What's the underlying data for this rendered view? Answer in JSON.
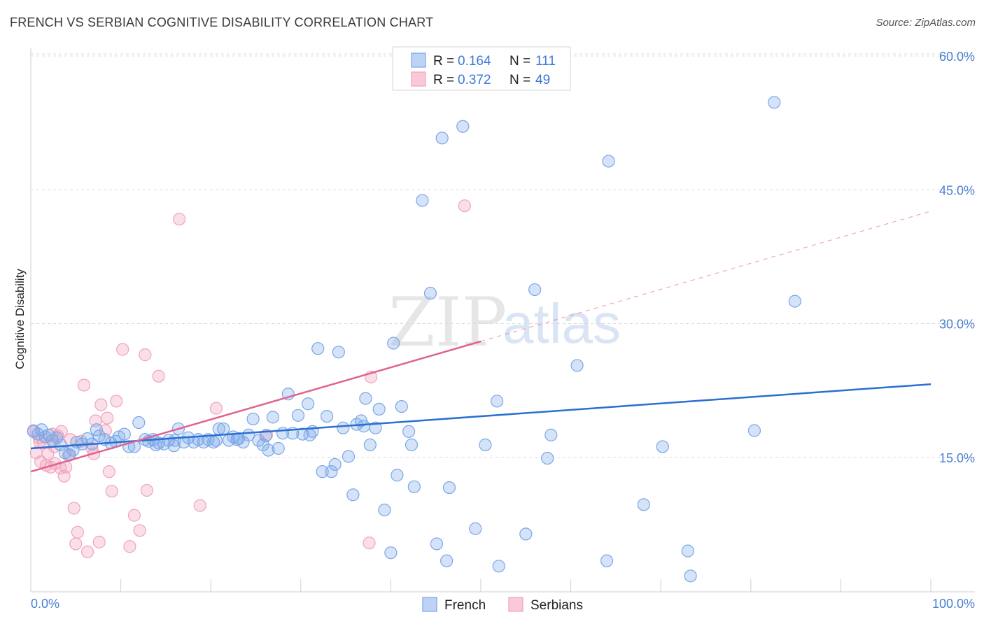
{
  "title": "FRENCH VS SERBIAN COGNITIVE DISABILITY CORRELATION CHART",
  "source": "Source: ZipAtlas.com",
  "colors": {
    "french": "#7aa7e8",
    "french_line": "#2a6fd1",
    "serbian": "#f1a3bc",
    "serbian_line": "#e0648d",
    "grid": "#dcdcdc",
    "axis_text": "#4a7fd0"
  },
  "legend": {
    "rows": [
      {
        "r_label": "R =",
        "r_value": "0.164",
        "n_label": "N =",
        "n_value": "111"
      },
      {
        "r_label": "R =",
        "r_value": "0.372",
        "n_label": "N =",
        "n_value": "49"
      }
    ]
  },
  "bottom_legend": [
    "French",
    "Serbians"
  ],
  "watermark": {
    "zip": "ZIP",
    "atlas": "atlas"
  },
  "chart_data": {
    "type": "scatter",
    "title": "FRENCH VS SERBIAN COGNITIVE DISABILITY CORRELATION CHART",
    "xlabel": "",
    "ylabel": "Cognitive Disability",
    "xlim": [
      0,
      100
    ],
    "ylim": [
      0,
      65
    ],
    "x_tick_labels": [
      "0.0%",
      "100.0%"
    ],
    "y_ticks": [
      15,
      30,
      45,
      60
    ],
    "y_tick_labels": [
      "15.0%",
      "30.0%",
      "45.0%",
      "60.0%"
    ],
    "grid": true,
    "legend_position": "top-center",
    "series": [
      {
        "name": "French",
        "r": 0.164,
        "n": 111,
        "trend": {
          "x0": 0,
          "y0": 16.0,
          "x1": 100,
          "y1": 23.2
        },
        "points": [
          [
            0.3,
            17.9
          ],
          [
            0.8,
            17.6
          ],
          [
            1.2,
            18.1
          ],
          [
            1.6,
            17.3
          ],
          [
            2.0,
            17.5
          ],
          [
            2.4,
            16.9
          ],
          [
            2.9,
            17.2
          ],
          [
            3.3,
            16.4
          ],
          [
            3.8,
            15.5
          ],
          [
            4.3,
            15.3
          ],
          [
            4.7,
            15.8
          ],
          [
            5.1,
            16.7
          ],
          [
            5.7,
            16.5
          ],
          [
            6.3,
            17.1
          ],
          [
            7.3,
            18.1
          ],
          [
            7.6,
            17.4
          ],
          [
            8.2,
            17.0
          ],
          [
            8.9,
            16.6
          ],
          [
            9.8,
            17.3
          ],
          [
            10.4,
            17.6
          ],
          [
            10.9,
            16.2
          ],
          [
            11.5,
            16.2
          ],
          [
            12.0,
            18.9
          ],
          [
            12.7,
            17.0
          ],
          [
            13.1,
            16.8
          ],
          [
            13.6,
            17.0
          ],
          [
            14.2,
            16.6
          ],
          [
            14.8,
            16.5
          ],
          [
            15.3,
            16.9
          ],
          [
            15.9,
            16.3
          ],
          [
            16.4,
            18.2
          ],
          [
            17.0,
            16.7
          ],
          [
            17.5,
            17.2
          ],
          [
            18.1,
            16.7
          ],
          [
            18.6,
            17.0
          ],
          [
            19.2,
            16.7
          ],
          [
            19.7,
            17.0
          ],
          [
            20.3,
            16.7
          ],
          [
            20.9,
            18.2
          ],
          [
            21.4,
            18.2
          ],
          [
            22.0,
            16.9
          ],
          [
            22.5,
            17.3
          ],
          [
            23.1,
            17.1
          ],
          [
            23.6,
            16.7
          ],
          [
            24.2,
            17.5
          ],
          [
            24.7,
            19.3
          ],
          [
            25.3,
            16.9
          ],
          [
            25.8,
            16.4
          ],
          [
            26.4,
            15.8
          ],
          [
            26.9,
            19.5
          ],
          [
            27.5,
            16.0
          ],
          [
            28.0,
            17.7
          ],
          [
            28.6,
            22.1
          ],
          [
            29.1,
            17.7
          ],
          [
            29.7,
            19.7
          ],
          [
            30.2,
            17.6
          ],
          [
            30.8,
            21.0
          ],
          [
            31.3,
            17.9
          ],
          [
            31.9,
            27.2
          ],
          [
            32.4,
            13.4
          ],
          [
            32.9,
            19.6
          ],
          [
            33.4,
            13.4
          ],
          [
            33.8,
            14.2
          ],
          [
            34.2,
            26.8
          ],
          [
            34.7,
            18.3
          ],
          [
            35.3,
            15.1
          ],
          [
            35.8,
            10.8
          ],
          [
            36.2,
            18.7
          ],
          [
            36.7,
            19.1
          ],
          [
            37.2,
            21.6
          ],
          [
            37.7,
            16.4
          ],
          [
            38.3,
            18.3
          ],
          [
            38.7,
            20.4
          ],
          [
            39.3,
            9.1
          ],
          [
            40.0,
            4.3
          ],
          [
            40.3,
            27.8
          ],
          [
            40.7,
            13.0
          ],
          [
            41.2,
            20.7
          ],
          [
            42.0,
            17.9
          ],
          [
            42.3,
            16.4
          ],
          [
            42.6,
            11.7
          ],
          [
            43.5,
            43.8
          ],
          [
            44.4,
            33.4
          ],
          [
            45.1,
            5.3
          ],
          [
            45.7,
            50.8
          ],
          [
            46.2,
            3.4
          ],
          [
            46.5,
            11.6
          ],
          [
            48.0,
            52.1
          ],
          [
            49.4,
            7.0
          ],
          [
            50.5,
            16.4
          ],
          [
            51.8,
            21.3
          ],
          [
            52.0,
            2.8
          ],
          [
            55.0,
            6.4
          ],
          [
            56.0,
            33.8
          ],
          [
            57.4,
            14.9
          ],
          [
            57.8,
            17.5
          ],
          [
            60.7,
            25.3
          ],
          [
            64.0,
            3.4
          ],
          [
            64.2,
            48.2
          ],
          [
            68.1,
            9.7
          ],
          [
            70.2,
            16.2
          ],
          [
            73.0,
            4.5
          ],
          [
            73.3,
            1.7
          ],
          [
            80.4,
            18.0
          ],
          [
            82.6,
            54.8
          ],
          [
            84.9,
            32.5
          ],
          [
            6.8,
            16.5
          ],
          [
            9.4,
            16.8
          ],
          [
            13.9,
            16.4
          ],
          [
            16.0,
            16.9
          ],
          [
            20.6,
            16.9
          ],
          [
            22.9,
            17.0
          ],
          [
            26.1,
            17.4
          ],
          [
            31.0,
            17.5
          ],
          [
            37.0,
            18.5
          ]
        ]
      },
      {
        "name": "Serbians",
        "r": 0.372,
        "n": 49,
        "trend": {
          "x0": 0,
          "y0": 13.4,
          "x1": 50,
          "y1": 28.0,
          "dash_to": {
            "x": 100,
            "y": 42.6
          }
        },
        "points": [
          [
            0.3,
            18.0
          ],
          [
            0.6,
            15.5
          ],
          [
            0.9,
            17.2
          ],
          [
            1.1,
            14.5
          ],
          [
            1.4,
            16.6
          ],
          [
            1.7,
            14.1
          ],
          [
            1.9,
            15.4
          ],
          [
            2.2,
            13.9
          ],
          [
            2.4,
            17.6
          ],
          [
            2.7,
            14.3
          ],
          [
            3.0,
            17.4
          ],
          [
            3.3,
            13.8
          ],
          [
            3.4,
            17.9
          ],
          [
            3.7,
            12.9
          ],
          [
            3.9,
            13.9
          ],
          [
            4.2,
            15.2
          ],
          [
            4.4,
            17.0
          ],
          [
            4.8,
            9.3
          ],
          [
            5.0,
            5.3
          ],
          [
            5.2,
            6.6
          ],
          [
            5.6,
            16.8
          ],
          [
            5.9,
            23.1
          ],
          [
            6.3,
            4.4
          ],
          [
            6.8,
            16.0
          ],
          [
            7.0,
            15.4
          ],
          [
            7.2,
            19.1
          ],
          [
            7.6,
            5.5
          ],
          [
            7.8,
            20.9
          ],
          [
            8.3,
            18.0
          ],
          [
            8.5,
            19.4
          ],
          [
            8.7,
            13.4
          ],
          [
            9.0,
            11.2
          ],
          [
            9.5,
            21.3
          ],
          [
            10.2,
            27.1
          ],
          [
            11.0,
            5.0
          ],
          [
            11.5,
            8.5
          ],
          [
            12.1,
            6.8
          ],
          [
            12.7,
            26.5
          ],
          [
            12.9,
            11.3
          ],
          [
            14.2,
            24.1
          ],
          [
            16.5,
            41.7
          ],
          [
            18.8,
            9.6
          ],
          [
            20.6,
            20.5
          ],
          [
            26.2,
            17.5
          ],
          [
            37.6,
            5.4
          ],
          [
            37.8,
            24.0
          ],
          [
            48.2,
            43.2
          ],
          [
            1.0,
            16.7
          ],
          [
            2.6,
            16.2
          ]
        ]
      }
    ]
  }
}
